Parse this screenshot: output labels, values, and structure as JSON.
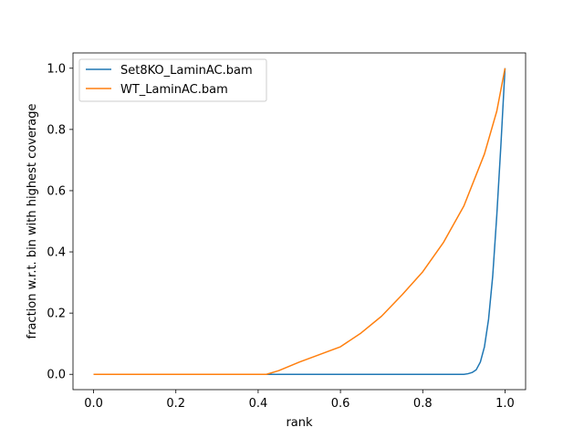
{
  "chart_data": {
    "type": "line",
    "xlabel": "rank",
    "ylabel": "fraction w.r.t. bin with highest coverage",
    "xlim": [
      -0.05,
      1.05
    ],
    "ylim": [
      -0.05,
      1.05
    ],
    "xticks": [
      "0.0",
      "0.2",
      "0.4",
      "0.6",
      "0.8",
      "1.0"
    ],
    "yticks": [
      "0.0",
      "0.2",
      "0.4",
      "0.6",
      "0.8",
      "1.0"
    ],
    "grid": false,
    "legend_position": "top-left",
    "series": [
      {
        "name": "Set8KO_LaminAC.bam",
        "color": "#1f77b4",
        "points": [
          [
            0.0,
            0.0
          ],
          [
            0.9,
            0.0
          ],
          [
            0.91,
            0.002
          ],
          [
            0.92,
            0.006
          ],
          [
            0.93,
            0.015
          ],
          [
            0.94,
            0.04
          ],
          [
            0.95,
            0.09
          ],
          [
            0.96,
            0.18
          ],
          [
            0.97,
            0.32
          ],
          [
            0.98,
            0.52
          ],
          [
            0.99,
            0.75
          ],
          [
            1.0,
            1.0
          ]
        ]
      },
      {
        "name": "WT_LaminAC.bam",
        "color": "#ff7f0e",
        "points": [
          [
            0.0,
            0.0
          ],
          [
            0.42,
            0.0
          ],
          [
            0.45,
            0.012
          ],
          [
            0.5,
            0.04
          ],
          [
            0.55,
            0.065
          ],
          [
            0.6,
            0.09
          ],
          [
            0.65,
            0.135
          ],
          [
            0.7,
            0.19
          ],
          [
            0.75,
            0.26
          ],
          [
            0.8,
            0.335
          ],
          [
            0.85,
            0.43
          ],
          [
            0.9,
            0.55
          ],
          [
            0.95,
            0.72
          ],
          [
            0.98,
            0.86
          ],
          [
            1.0,
            1.0
          ]
        ]
      }
    ]
  }
}
